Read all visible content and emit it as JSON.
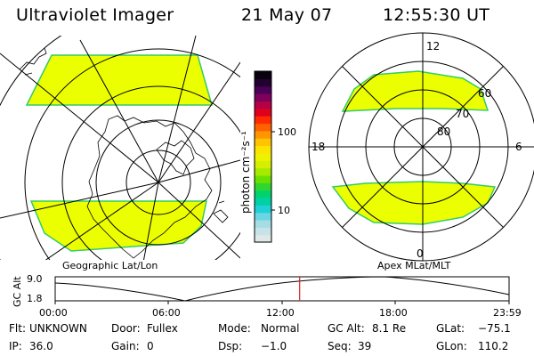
{
  "header": {
    "instrument": "Ultraviolet Imager",
    "date": "21 May 07",
    "time": "12:55:30 UT"
  },
  "left_map": {
    "caption": "Geographic Lat/Lon"
  },
  "right_map": {
    "caption": "Apex MLat/MLT",
    "mlt_labels": [
      "12",
      "18",
      "6",
      "0"
    ],
    "mlat_labels": [
      "60",
      "70",
      "80"
    ]
  },
  "colorbar": {
    "unit_label": "photon cm⁻²s⁻¹",
    "tick_labels": [
      "100",
      "10"
    ],
    "colors": [
      "#dfe8e8",
      "#c8e3e7",
      "#a5dde5",
      "#6ad6e2",
      "#1fd0d6",
      "#00d0a6",
      "#00d36e",
      "#2fd62f",
      "#6be000",
      "#a6ea00",
      "#d4f000",
      "#eef200",
      "#fbe400",
      "#ffc400",
      "#ff9600",
      "#ff6000",
      "#ff2a00",
      "#e0001e",
      "#b40044",
      "#7e005c",
      "#4a0056",
      "#220030",
      "#08000f"
    ]
  },
  "altitude_panel": {
    "ylabel": "GC Alt",
    "y_ticks": [
      "9.0",
      "1.8"
    ],
    "time_ticks": [
      "00:00",
      "06:00",
      "12:00",
      "18:00",
      "23:59"
    ],
    "current_time_fraction": 0.5386
  },
  "info": {
    "flt_label": "Flt:",
    "flt_value": "UNKNOWN",
    "door_label": "Door:",
    "door_value": "Fullex",
    "mode_label": "Mode:",
    "mode_value": "Normal",
    "gcalt_label": "GC Alt:",
    "gcalt_value": "8.1 Re",
    "glat_label": "GLat:",
    "glat_value": "−75.1",
    "ip_label": "IP:",
    "ip_value": "36.0",
    "gain_label": "Gain:",
    "gain_value": "0",
    "dsp_label": "Dsp:",
    "dsp_value": "−1.0",
    "seq_label": "Seq:",
    "seq_value": "39",
    "glon_label": "GLon:",
    "glon_value": "110.2"
  },
  "colors": {
    "auroral_fill": "#ecff00",
    "auroral_edge": "#32cc66",
    "marker": "#e02020"
  }
}
